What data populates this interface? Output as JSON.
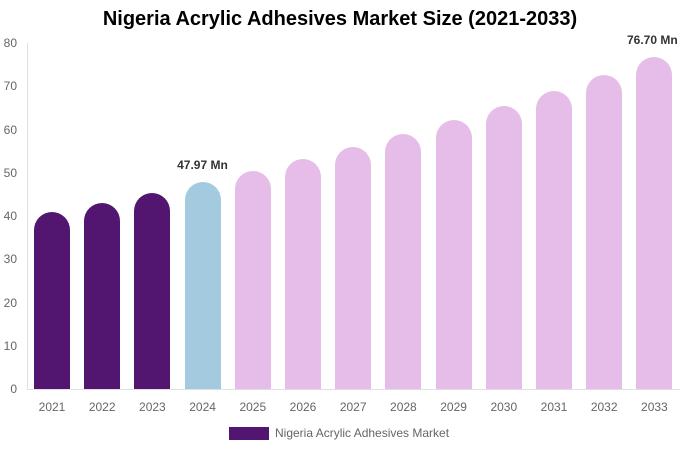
{
  "chart_data": {
    "type": "bar",
    "title": "Nigeria Acrylic Adhesives Market Size (2021-2033)",
    "xlabel": "",
    "ylabel": "",
    "ylim": [
      0,
      80
    ],
    "yticks": [
      0,
      10,
      20,
      30,
      40,
      50,
      60,
      70,
      80
    ],
    "grid": false,
    "legend_position": "bottom",
    "categories": [
      "2021",
      "2022",
      "2023",
      "2024",
      "2025",
      "2026",
      "2027",
      "2028",
      "2029",
      "2030",
      "2031",
      "2032",
      "2033"
    ],
    "series": [
      {
        "name": "Nigeria Acrylic Adhesives Market",
        "values": [
          41.0,
          43.1,
          45.4,
          47.97,
          50.4,
          53.1,
          56.0,
          59.0,
          62.2,
          65.4,
          68.9,
          72.6,
          76.7
        ]
      }
    ],
    "bar_colors": [
      "#521570",
      "#521570",
      "#521570",
      "#a3cade",
      "#e6bde8",
      "#e6bde8",
      "#e6bde8",
      "#e6bde8",
      "#e6bde8",
      "#e6bde8",
      "#e6bde8",
      "#e6bde8",
      "#e6bde8"
    ],
    "annotations": [
      {
        "category": "2024",
        "text": "47.97 Mn"
      },
      {
        "category": "2033",
        "text": "76.70 Mn"
      }
    ]
  },
  "legend": {
    "label": "Nigeria Acrylic Adhesives Market",
    "color": "#521570"
  }
}
